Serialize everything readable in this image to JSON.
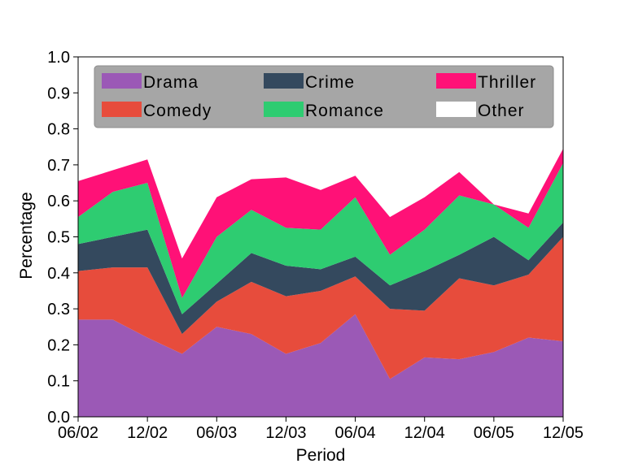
{
  "chart_data": {
    "type": "area",
    "stacked": true,
    "xlabel": "Period",
    "ylabel": "Percentage",
    "ylim": [
      0,
      1.0
    ],
    "xticks": [
      "06/02",
      "12/02",
      "06/03",
      "12/03",
      "06/04",
      "12/04",
      "06/05",
      "12/05"
    ],
    "yticks": [
      "0.0",
      "0.1",
      "0.2",
      "0.3",
      "0.4",
      "0.5",
      "0.6",
      "0.7",
      "0.8",
      "0.9",
      "1.0"
    ],
    "legend_position": "top",
    "grid": false,
    "x": [
      "06/02",
      "09/02",
      "12/02",
      "03/03",
      "06/03",
      "09/03",
      "12/03",
      "03/04",
      "06/04",
      "09/04",
      "12/04",
      "03/05",
      "06/05",
      "09/05",
      "12/05"
    ],
    "series": [
      {
        "name": "Drama",
        "color": "#9b59b6",
        "values": [
          0.27,
          0.27,
          0.22,
          0.175,
          0.25,
          0.23,
          0.175,
          0.205,
          0.285,
          0.105,
          0.165,
          0.16,
          0.18,
          0.22,
          0.21
        ]
      },
      {
        "name": "Comedy",
        "color": "#e74c3c",
        "values": [
          0.135,
          0.145,
          0.195,
          0.055,
          0.07,
          0.145,
          0.16,
          0.145,
          0.105,
          0.195,
          0.13,
          0.225,
          0.185,
          0.175,
          0.29
        ]
      },
      {
        "name": "Crime",
        "color": "#34495e",
        "values": [
          0.075,
          0.085,
          0.105,
          0.055,
          0.05,
          0.08,
          0.085,
          0.06,
          0.055,
          0.065,
          0.11,
          0.065,
          0.135,
          0.04,
          0.04
        ]
      },
      {
        "name": "Romance",
        "color": "#2ecc71",
        "values": [
          0.075,
          0.125,
          0.13,
          0.045,
          0.13,
          0.12,
          0.105,
          0.11,
          0.165,
          0.085,
          0.115,
          0.165,
          0.09,
          0.09,
          0.165
        ]
      },
      {
        "name": "Thriller",
        "color": "#ff1177",
        "values": [
          0.1,
          0.06,
          0.065,
          0.11,
          0.11,
          0.085,
          0.14,
          0.11,
          0.06,
          0.105,
          0.09,
          0.065,
          0.0,
          0.04,
          0.04
        ]
      },
      {
        "name": "Other",
        "color": "#ffffff",
        "values": [
          0,
          0,
          0,
          0,
          0,
          0,
          0,
          0,
          0,
          0,
          0,
          0,
          0,
          0,
          0
        ]
      }
    ]
  }
}
